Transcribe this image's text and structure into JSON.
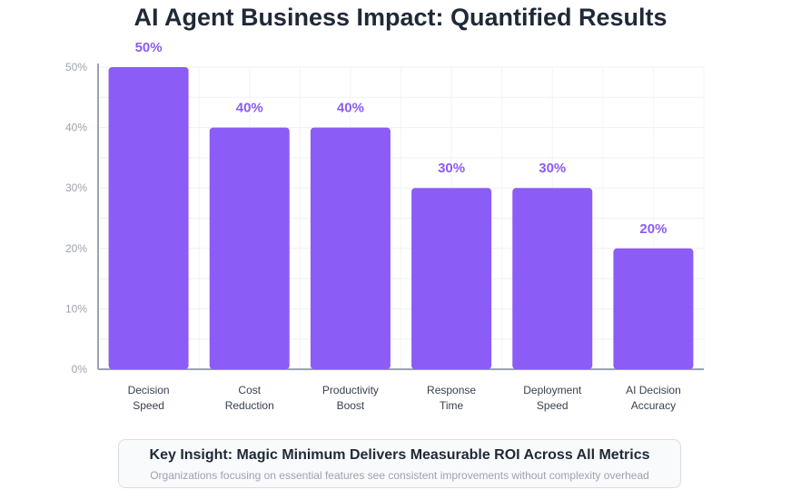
{
  "chart_data": {
    "type": "bar",
    "title": "AI Agent Business Impact: Quantified Results",
    "categories": [
      [
        "Decision",
        "Speed"
      ],
      [
        "Cost",
        "Reduction"
      ],
      [
        "Productivity",
        "Boost"
      ],
      [
        "Response",
        "Time"
      ],
      [
        "Deployment",
        "Speed"
      ],
      [
        "AI Decision",
        "Accuracy"
      ]
    ],
    "values": [
      50,
      40,
      40,
      30,
      30,
      20
    ],
    "value_labels": [
      "50%",
      "40%",
      "40%",
      "30%",
      "30%",
      "20%"
    ],
    "yticks": [
      "0%",
      "10%",
      "20%",
      "30%",
      "40%",
      "50%"
    ],
    "ylim": [
      0,
      50
    ],
    "xlabel": "",
    "ylabel": "",
    "grid": true,
    "bar_color": "#8b5cf6",
    "label_color": "#8b5cf6"
  },
  "insight": {
    "title": "Key Insight: Magic Minimum Delivers Measurable ROI Across All Metrics",
    "text": "Organizations focusing on essential features see consistent improvements without complexity overhead"
  }
}
